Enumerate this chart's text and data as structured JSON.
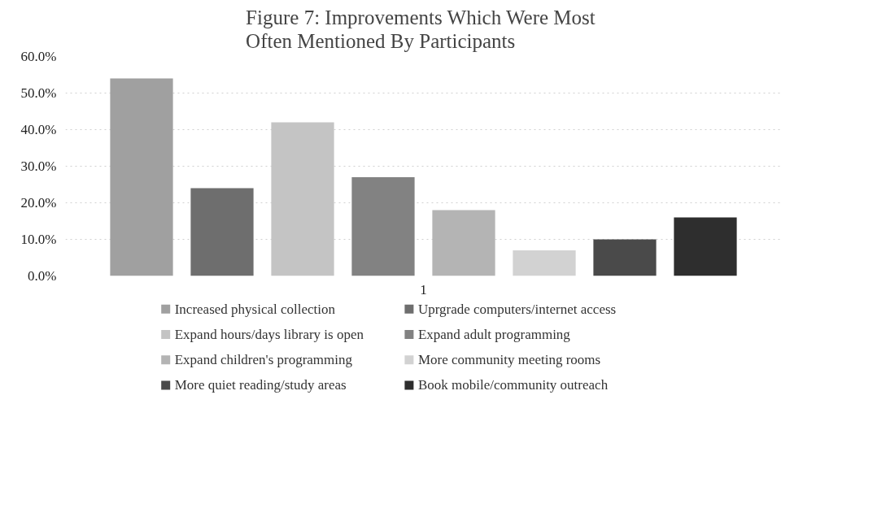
{
  "chart_data": {
    "type": "bar",
    "title": "Figure 7:  Improvements Which Were Most Often Mentioned By Participants",
    "categories": [
      "1"
    ],
    "series": [
      {
        "name": "Increased physical collection",
        "color": "#a0a0a0",
        "values": [
          54
        ]
      },
      {
        "name": "Uprgrade computers/internet access",
        "color": "#6e6e6e",
        "values": [
          24
        ]
      },
      {
        "name": "Expand hours/days library is open",
        "color": "#c4c4c4",
        "values": [
          42
        ]
      },
      {
        "name": "Expand adult programming",
        "color": "#828282",
        "values": [
          27
        ]
      },
      {
        "name": "Expand children's programming",
        "color": "#b4b4b4",
        "values": [
          18
        ]
      },
      {
        "name": "More community meeting rooms",
        "color": "#d2d2d2",
        "values": [
          7
        ]
      },
      {
        "name": "More quiet reading/study areas",
        "color": "#4a4a4a",
        "values": [
          10
        ]
      },
      {
        "name": "Book mobile/community outreach",
        "color": "#2e2e2e",
        "values": [
          16
        ]
      }
    ],
    "ylim": [
      0,
      60
    ],
    "yticks": [
      {
        "value": 0,
        "label": "0.0%"
      },
      {
        "value": 10,
        "label": "10.0%"
      },
      {
        "value": 20,
        "label": "20.0%"
      },
      {
        "value": 30,
        "label": "30.0%"
      },
      {
        "value": 40,
        "label": "40.0%"
      },
      {
        "value": 50,
        "label": "50.0%"
      },
      {
        "value": 60,
        "label": "60.0%"
      }
    ],
    "grid": "y",
    "legend": "bottom"
  }
}
